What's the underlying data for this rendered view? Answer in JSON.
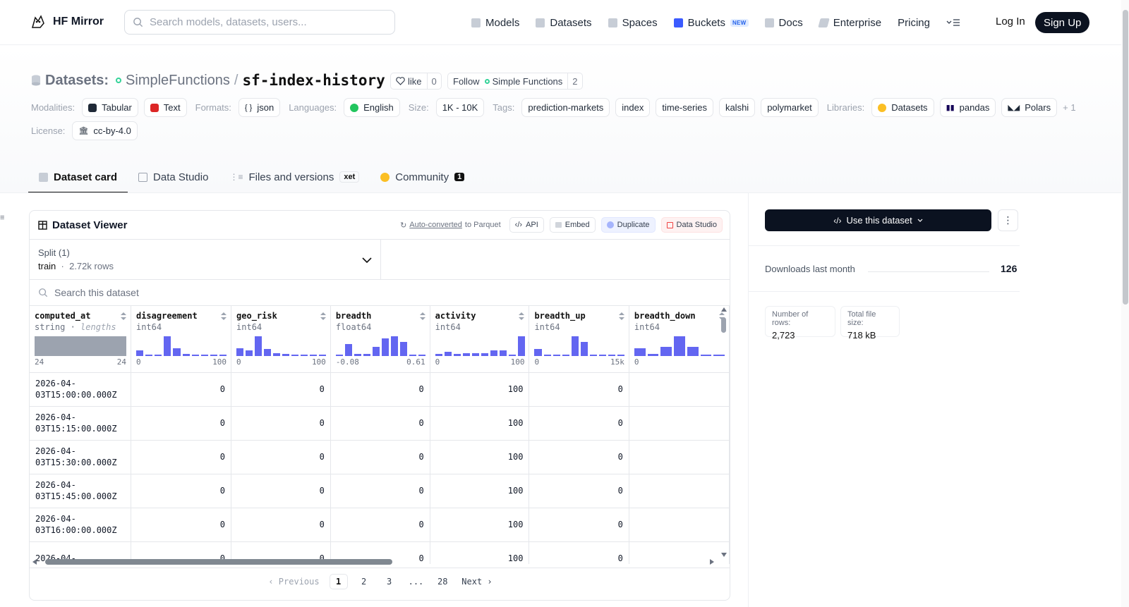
{
  "nav": {
    "brand": "HF Mirror",
    "search_placeholder": "Search models, datasets, users...",
    "links": [
      "Models",
      "Datasets",
      "Spaces",
      "Buckets",
      "Docs",
      "Enterprise",
      "Pricing"
    ],
    "buckets_badge": "NEW",
    "login": "Log In",
    "signup": "Sign Up"
  },
  "repo": {
    "type_label": "Datasets:",
    "org": "SimpleFunctions",
    "sep": "/",
    "name": "sf-index-history",
    "like_label": "like",
    "like_count": "0",
    "follow_label": "Follow",
    "follow_org": "Simple Functions",
    "follow_count": "2"
  },
  "meta": {
    "modalities_label": "Modalities:",
    "modalities": [
      "Tabular",
      "Text"
    ],
    "formats_label": "Formats:",
    "format": "json",
    "languages_label": "Languages:",
    "language": "English",
    "size_label": "Size:",
    "size": "1K - 10K",
    "tags_label": "Tags:",
    "tags": [
      "prediction-markets",
      "index",
      "time-series",
      "kalshi",
      "polymarket"
    ],
    "libraries_label": "Libraries:",
    "libraries": [
      "Datasets",
      "pandas",
      "Polars"
    ],
    "libraries_more": "+ 1",
    "license_label": "License:",
    "license": "cc-by-4.0"
  },
  "tabs": [
    {
      "label": "Dataset card"
    },
    {
      "label": "Data Studio"
    },
    {
      "label": "Files and versions",
      "badge": "xet"
    },
    {
      "label": "Community",
      "badge": "1"
    }
  ],
  "viewer": {
    "title": "Dataset Viewer",
    "autoconv_link": "Auto-converted",
    "autoconv_rest": "to Parquet",
    "btn_api": "API",
    "btn_embed": "Embed",
    "btn_duplicate": "Duplicate",
    "btn_datastudio": "Data Studio",
    "split_label": "Split (1)",
    "split_name": "train",
    "split_rows": "2.72k rows",
    "search_placeholder": "Search this dataset",
    "columns": [
      {
        "name": "computed_at",
        "type": "string",
        "type_extra": "lengths",
        "min": "24",
        "max": "24",
        "hist": [
          1
        ],
        "gray": true
      },
      {
        "name": "disagreement",
        "type": "int64",
        "min": "0",
        "max": "100",
        "hist": [
          0.3,
          0.05,
          0.05,
          1.0,
          0.4,
          0.1,
          0.05,
          0.05,
          0.05,
          0.05
        ]
      },
      {
        "name": "geo_risk",
        "type": "int64",
        "min": "0",
        "max": "100",
        "hist": [
          0.4,
          0.3,
          1.0,
          0.35,
          0.15,
          0.1,
          0.05,
          0.05,
          0.05,
          0.05
        ]
      },
      {
        "name": "breadth",
        "type": "float64",
        "min": "-0.08",
        "max": "0.61",
        "hist": [
          0.05,
          0.6,
          0.1,
          0.1,
          0.45,
          0.9,
          1.0,
          0.7,
          0.05,
          0.05
        ]
      },
      {
        "name": "activity",
        "type": "int64",
        "min": "0",
        "max": "100",
        "hist": [
          0.1,
          0.2,
          0.1,
          0.15,
          0.15,
          0.15,
          0.3,
          0.3,
          0.05,
          1.0
        ]
      },
      {
        "name": "breadth_up",
        "type": "int64",
        "min": "0",
        "max": "15k",
        "hist": [
          0.35,
          0.05,
          0.05,
          0.05,
          1.0,
          0.7,
          0.05,
          0.05,
          0.05,
          0.05
        ]
      },
      {
        "name": "breadth_down",
        "type": "int64",
        "min": "0",
        "max": "",
        "hist": [
          0.4,
          0.1,
          0.45,
          1.0,
          0.45,
          0.05,
          0.05
        ]
      }
    ],
    "rows": [
      [
        "2026-04-03T15:00:00.000Z",
        "0",
        "0",
        "0",
        "100",
        "0",
        ""
      ],
      [
        "2026-04-03T15:15:00.000Z",
        "0",
        "0",
        "0",
        "100",
        "0",
        ""
      ],
      [
        "2026-04-03T15:30:00.000Z",
        "0",
        "0",
        "0",
        "100",
        "0",
        ""
      ],
      [
        "2026-04-03T15:45:00.000Z",
        "0",
        "0",
        "0",
        "100",
        "0",
        ""
      ],
      [
        "2026-04-03T16:00:00.000Z",
        "0",
        "0",
        "0",
        "100",
        "0",
        ""
      ],
      [
        "2026-04-",
        "0",
        "0",
        "0",
        "100",
        "0",
        ""
      ]
    ],
    "pager": {
      "prev": "Previous",
      "pages": [
        "1",
        "2",
        "3",
        "...",
        "28"
      ],
      "current": "1",
      "next": "Next"
    }
  },
  "side": {
    "use_label": "Use this dataset",
    "downloads_label": "Downloads last month",
    "downloads_value": "126",
    "rows_label": "Number of rows:",
    "rows_value": "2,723",
    "size_label": "Total file size:",
    "size_value": "718 kB"
  },
  "colors": {
    "accent": "#6366f1",
    "dark": "#0b1220",
    "border": "#e5e7eb"
  }
}
